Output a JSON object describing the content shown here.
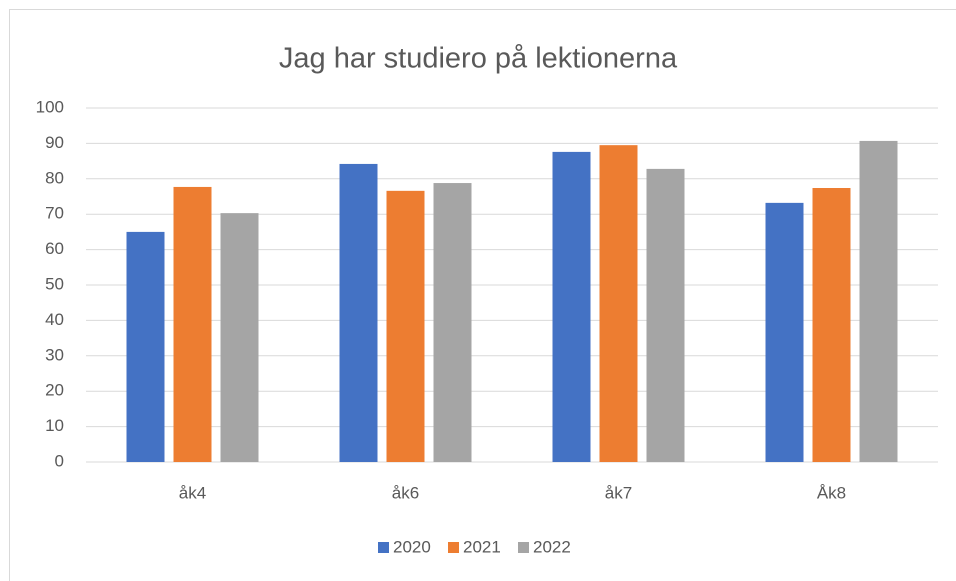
{
  "chart_data": {
    "type": "bar",
    "title": "Jag har studiero på lektionerna",
    "categories": [
      "åk4",
      "åk6",
      "åk7",
      "Åk8"
    ],
    "series": [
      {
        "name": "2020",
        "color": "#4472c4",
        "values": [
          65,
          84.2,
          87.6,
          73.2
        ]
      },
      {
        "name": "2021",
        "color": "#ed7d31",
        "values": [
          77.7,
          76.6,
          89.5,
          77.4
        ]
      },
      {
        "name": "2022",
        "color": "#a5a5a5",
        "values": [
          70.3,
          78.8,
          82.8,
          90.7
        ]
      }
    ],
    "ylim": [
      0,
      100
    ],
    "yticks": [
      0,
      10,
      20,
      30,
      40,
      50,
      60,
      70,
      80,
      90,
      100
    ],
    "grid": true,
    "legend": "bottom"
  }
}
